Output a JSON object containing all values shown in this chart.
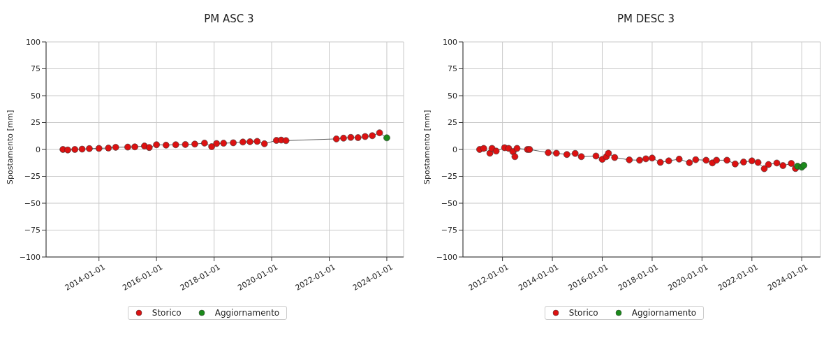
{
  "chart_data": [
    {
      "type": "scatter",
      "title": "PM ASC 3",
      "ylabel": "Spostamento [mm]",
      "xlim": [
        "2012-03-01",
        "2024-08-01"
      ],
      "xticks": [
        "2014-01-01",
        "2016-01-01",
        "2018-01-01",
        "2020-01-01",
        "2022-01-01",
        "2024-01-01"
      ],
      "ylim": [
        -100,
        100
      ],
      "yticks": [
        {
          "value": -100,
          "label": "−100"
        },
        {
          "value": -75,
          "label": "−75"
        },
        {
          "value": -50,
          "label": "−50"
        },
        {
          "value": -25,
          "label": "−25"
        },
        0,
        25,
        50,
        75,
        100
      ],
      "grid": true,
      "legend": "bottom",
      "marker": "circle",
      "series": [
        {
          "type": "line",
          "color": "#333333",
          "marker": "none",
          "line_style": "solid",
          "x": [
            "2012-10-01",
            "2012-12-01",
            "2013-03-01",
            "2013-06-01",
            "2013-09-01",
            "2014-01-01",
            "2014-05-01",
            "2014-08-01",
            "2015-01-01",
            "2015-04-01",
            "2015-08-01",
            "2015-10-01",
            "2016-01-01",
            "2016-05-01",
            "2016-09-01",
            "2017-01-01",
            "2017-05-01",
            "2017-09-01",
            "2017-12-01",
            "2018-02-01",
            "2018-05-01",
            "2018-09-01",
            "2019-01-01",
            "2019-04-01",
            "2019-07-01",
            "2019-10-01",
            "2020-03-01",
            "2020-05-01",
            "2020-07-01",
            "2022-04-01",
            "2022-07-01",
            "2022-10-01",
            "2023-01-01",
            "2023-04-01",
            "2023-07-01",
            "2023-10-01",
            "2024-01-01"
          ],
          "values": [
            0,
            -0.5,
            0,
            0.3,
            0.8,
            1,
            1.3,
            2,
            2.2,
            2.4,
            3.2,
            1.8,
            4.4,
            4,
            4.4,
            4.6,
            5,
            5.9,
            2.6,
            5.5,
            5.8,
            6.2,
            6.9,
            7.2,
            7.5,
            5.3,
            8.4,
            8.7,
            8.2,
            9.8,
            10.5,
            11.2,
            11,
            12,
            12.8,
            15.5,
            10.8
          ]
        },
        {
          "name": "Storico",
          "color": "#dd1111",
          "x": [
            "2012-10-01",
            "2012-12-01",
            "2013-03-01",
            "2013-06-01",
            "2013-09-01",
            "2014-01-01",
            "2014-05-01",
            "2014-08-01",
            "2015-01-01",
            "2015-04-01",
            "2015-08-01",
            "2015-10-01",
            "2016-01-01",
            "2016-05-01",
            "2016-09-01",
            "2017-01-01",
            "2017-05-01",
            "2017-09-01",
            "2017-12-01",
            "2018-02-01",
            "2018-05-01",
            "2018-09-01",
            "2019-01-01",
            "2019-04-01",
            "2019-07-01",
            "2019-10-01",
            "2020-03-01",
            "2020-05-01",
            "2020-07-01",
            "2022-04-01",
            "2022-07-01",
            "2022-10-01",
            "2023-01-01",
            "2023-04-01",
            "2023-07-01",
            "2023-10-01"
          ],
          "values": [
            0,
            -0.5,
            0,
            0.3,
            0.8,
            1,
            1.3,
            2,
            2.2,
            2.4,
            3.2,
            1.8,
            4.4,
            4,
            4.4,
            4.6,
            5,
            5.9,
            2.6,
            5.5,
            5.8,
            6.2,
            6.9,
            7.2,
            7.5,
            5.3,
            8.4,
            8.7,
            8.2,
            9.8,
            10.5,
            11.2,
            11,
            12,
            12.8,
            15.5
          ]
        },
        {
          "name": "Aggiornamento",
          "color": "#1a8a1a",
          "x": [
            "2024-01-01"
          ],
          "values": [
            10.8
          ]
        }
      ]
    },
    {
      "type": "scatter",
      "title": "PM DESC 3",
      "ylabel": "Spostamento [mm]",
      "xlim": [
        "2010-06-01",
        "2024-10-01"
      ],
      "xticks": [
        "2012-01-01",
        "2014-01-01",
        "2016-01-01",
        "2018-01-01",
        "2020-01-01",
        "2022-01-01",
        "2024-01-01"
      ],
      "ylim": [
        -100,
        100
      ],
      "yticks": [
        {
          "value": -100,
          "label": "−100"
        },
        {
          "value": -75,
          "label": "−75"
        },
        {
          "value": -50,
          "label": "−50"
        },
        {
          "value": -25,
          "label": "−25"
        },
        0,
        25,
        50,
        75,
        100
      ],
      "grid": true,
      "legend": "bottom",
      "marker": "circle",
      "series": [
        {
          "type": "line",
          "color": "#333333",
          "marker": "none",
          "line_style": "solid",
          "x": [
            "2011-02-01",
            "2011-04-01",
            "2011-07-01",
            "2011-08-01",
            "2011-10-01",
            "2012-02-01",
            "2012-04-01",
            "2012-06-01",
            "2012-07-01",
            "2012-08-01",
            "2013-01-01",
            "2013-02-01",
            "2013-11-01",
            "2014-03-01",
            "2014-08-01",
            "2014-12-01",
            "2015-03-01",
            "2015-10-01",
            "2016-01-01",
            "2016-03-01",
            "2016-04-01",
            "2016-07-01",
            "2017-02-01",
            "2017-07-01",
            "2017-10-01",
            "2018-01-01",
            "2018-05-01",
            "2018-09-01",
            "2019-02-01",
            "2019-07-01",
            "2019-10-01",
            "2020-03-01",
            "2020-06-01",
            "2020-08-01",
            "2021-01-01",
            "2021-05-01",
            "2021-09-01",
            "2022-01-01",
            "2022-04-01",
            "2022-07-01",
            "2022-09-01",
            "2023-01-01",
            "2023-04-01",
            "2023-08-01",
            "2023-10-01",
            "2023-11-01",
            "2024-01-01",
            "2024-02-01"
          ],
          "values": [
            0,
            1,
            -3.5,
            1,
            -1.5,
            1.6,
            1,
            -2,
            -6.7,
            1,
            0,
            0,
            -3,
            -3.5,
            -4.7,
            -3.7,
            -6.7,
            -6.1,
            -9.2,
            -6.7,
            -3.5,
            -7.5,
            -9.7,
            -10,
            -8.7,
            -8,
            -12,
            -10.6,
            -9,
            -12.3,
            -9.5,
            -10,
            -12.5,
            -10,
            -10,
            -13.5,
            -11.7,
            -10.6,
            -12.1,
            -17.9,
            -14,
            -12.6,
            -15,
            -13,
            -17.7,
            -15.6,
            -16.5,
            -14.8
          ]
        },
        {
          "name": "Storico",
          "color": "#dd1111",
          "x": [
            "2011-02-01",
            "2011-04-01",
            "2011-07-01",
            "2011-08-01",
            "2011-10-01",
            "2012-02-01",
            "2012-04-01",
            "2012-06-01",
            "2012-07-01",
            "2012-08-01",
            "2013-01-01",
            "2013-02-01",
            "2013-11-01",
            "2014-03-01",
            "2014-08-01",
            "2014-12-01",
            "2015-03-01",
            "2015-10-01",
            "2016-01-01",
            "2016-03-01",
            "2016-04-01",
            "2016-07-01",
            "2017-02-01",
            "2017-07-01",
            "2017-10-01",
            "2018-01-01",
            "2018-05-01",
            "2018-09-01",
            "2019-02-01",
            "2019-07-01",
            "2019-10-01",
            "2020-03-01",
            "2020-06-01",
            "2020-08-01",
            "2021-01-01",
            "2021-05-01",
            "2021-09-01",
            "2022-01-01",
            "2022-04-01",
            "2022-07-01",
            "2022-09-01",
            "2023-01-01",
            "2023-04-01",
            "2023-08-01",
            "2023-10-01"
          ],
          "values": [
            0,
            1,
            -3.5,
            1,
            -1.5,
            1.6,
            1,
            -2,
            -6.7,
            1,
            0,
            0,
            -3,
            -3.5,
            -4.7,
            -3.7,
            -6.7,
            -6.1,
            -9.2,
            -6.7,
            -3.5,
            -7.5,
            -9.7,
            -10,
            -8.7,
            -8,
            -12,
            -10.6,
            -9,
            -12.3,
            -9.5,
            -10,
            -12.5,
            -10,
            -10,
            -13.5,
            -11.7,
            -10.6,
            -12.1,
            -17.9,
            -14,
            -12.6,
            -15,
            -13,
            -17.7
          ]
        },
        {
          "name": "Aggiornamento",
          "color": "#1a8a1a",
          "x": [
            "2023-11-01",
            "2024-01-01",
            "2024-02-01"
          ],
          "values": [
            -15.6,
            -16.5,
            -14.8
          ]
        }
      ]
    }
  ]
}
